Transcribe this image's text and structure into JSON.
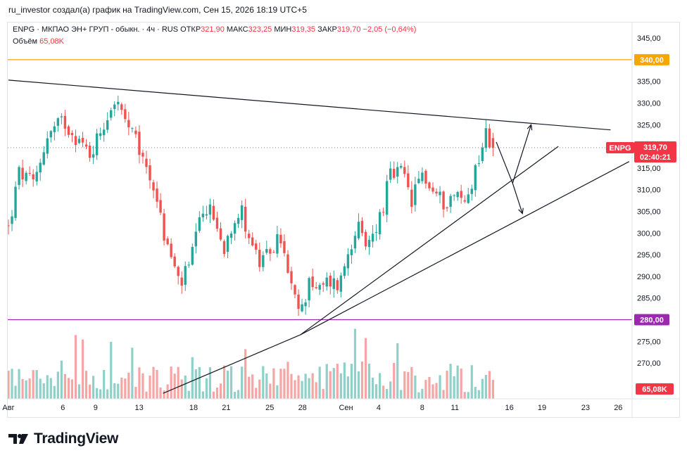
{
  "header": {
    "attribution": "ru_investor создал(а) график на TradingView.com, Сен 15, 2026 18:19 UTC+5"
  },
  "legend": {
    "ticker_line": "ENPG · МКПАО ЭН+ ГРУП - обыкн. · 4ч · RUS",
    "open_label": "ОТКР",
    "open_value": "321,90",
    "high_label": "МАКС",
    "high_value": "323,25",
    "low_label": "МИН",
    "low_value": "319,35",
    "close_label": "ЗАКР",
    "close_value": "319,70",
    "change": "−2,05 (−0,64%)",
    "volume_label": "Объём",
    "volume_value": "65,08K"
  },
  "badges": {
    "ticker": "ENPG",
    "price": "319,70",
    "countdown": "02:40:21",
    "level_340": "340,00",
    "level_280": "280,00",
    "volume": "65,08K"
  },
  "footer": {
    "brand": "TradingView"
  },
  "colors": {
    "up": "#26a69a",
    "down": "#ef5350",
    "up_volume": "#8fd0c8",
    "down_volume": "#f5a6a4",
    "level_340": "#f7a600",
    "level_280": "#9c27b0",
    "trendline": "#131722",
    "price_badge": "#f23645"
  },
  "chart_data": {
    "type": "candlestick",
    "symbol": "ENPG",
    "timeframe": "4ч",
    "y_ticks": [
      "345,00",
      "335,00",
      "330,00",
      "325,00",
      "315,00",
      "310,00",
      "305,00",
      "300,00",
      "295,00",
      "290,00",
      "285,00",
      "275,00",
      "270,00"
    ],
    "ylim": [
      263,
      348
    ],
    "x_ticks": [
      {
        "label": "Авг",
        "day": 0
      },
      {
        "label": "6",
        "day": 5
      },
      {
        "label": "9",
        "day": 8
      },
      {
        "label": "13",
        "day": 12
      },
      {
        "label": "18",
        "day": 17
      },
      {
        "label": "21",
        "day": 20
      },
      {
        "label": "25",
        "day": 24
      },
      {
        "label": "28",
        "day": 27
      },
      {
        "label": "Сен",
        "day": 31
      },
      {
        "label": "4",
        "day": 34
      },
      {
        "label": "8",
        "day": 38
      },
      {
        "label": "11",
        "day": 41
      },
      {
        "label": "16",
        "day": 46
      },
      {
        "label": "19",
        "day": 49
      },
      {
        "label": "23",
        "day": 53
      },
      {
        "label": "26",
        "day": 56
      }
    ],
    "xlim": [
      0,
      57
    ],
    "anchor_points": [
      {
        "day": 0.0,
        "price": 301
      },
      {
        "day": 1.0,
        "price": 314
      },
      {
        "day": 2.3,
        "price": 311
      },
      {
        "day": 3.5,
        "price": 322
      },
      {
        "day": 5.0,
        "price": 326
      },
      {
        "day": 6.3,
        "price": 322
      },
      {
        "day": 7.5,
        "price": 318
      },
      {
        "day": 8.5,
        "price": 324
      },
      {
        "day": 9.8,
        "price": 331
      },
      {
        "day": 10.6,
        "price": 326
      },
      {
        "day": 11.5,
        "price": 322
      },
      {
        "day": 12.5,
        "price": 316
      },
      {
        "day": 13.5,
        "price": 310
      },
      {
        "day": 14.2,
        "price": 300
      },
      {
        "day": 15.0,
        "price": 294
      },
      {
        "day": 15.7,
        "price": 288
      },
      {
        "day": 16.6,
        "price": 292
      },
      {
        "day": 17.3,
        "price": 300
      },
      {
        "day": 18.2,
        "price": 306
      },
      {
        "day": 19.0,
        "price": 303
      },
      {
        "day": 19.7,
        "price": 296
      },
      {
        "day": 20.6,
        "price": 303
      },
      {
        "day": 21.4,
        "price": 305
      },
      {
        "day": 22.3,
        "price": 298
      },
      {
        "day": 23.2,
        "price": 292
      },
      {
        "day": 24.0,
        "price": 296
      },
      {
        "day": 25.0,
        "price": 299
      },
      {
        "day": 25.6,
        "price": 291
      },
      {
        "day": 26.3,
        "price": 284
      },
      {
        "day": 27.0,
        "price": 282
      },
      {
        "day": 27.6,
        "price": 290
      },
      {
        "day": 28.4,
        "price": 286
      },
      {
        "day": 29.4,
        "price": 289
      },
      {
        "day": 30.4,
        "price": 288
      },
      {
        "day": 31.2,
        "price": 296
      },
      {
        "day": 32.0,
        "price": 302
      },
      {
        "day": 32.8,
        "price": 296
      },
      {
        "day": 33.5,
        "price": 300
      },
      {
        "day": 34.3,
        "price": 305
      },
      {
        "day": 35.0,
        "price": 313
      },
      {
        "day": 36.2,
        "price": 314
      },
      {
        "day": 37.0,
        "price": 307
      },
      {
        "day": 38.0,
        "price": 314
      },
      {
        "day": 38.8,
        "price": 310
      },
      {
        "day": 40.0,
        "price": 307
      },
      {
        "day": 41.0,
        "price": 309
      },
      {
        "day": 42.0,
        "price": 307
      },
      {
        "day": 43.0,
        "price": 316
      },
      {
        "day": 43.8,
        "price": 323
      },
      {
        "day": 44.5,
        "price": 319.7
      }
    ],
    "candle_count": 138,
    "volume_scale_max": 110,
    "horizontal_levels": [
      {
        "price": 340.0,
        "color": "#f7a600"
      },
      {
        "price": 280.0,
        "color": "#9c27b0"
      }
    ],
    "last_price": 319.7,
    "trendlines": [
      {
        "from": {
          "day": 0,
          "price": 335.3
        },
        "to": {
          "day": 55.3,
          "price": 323.8
        }
      },
      {
        "from": {
          "day": 26.8,
          "price": 276.5
        },
        "to": {
          "day": 50.5,
          "price": 320
        }
      },
      {
        "from": {
          "day": 26.8,
          "price": 276.5
        },
        "to": {
          "day": 57,
          "price": 316.5
        }
      },
      {
        "from": {
          "day": 14.2,
          "price": 263
        },
        "to": {
          "day": 26.8,
          "price": 276.5
        }
      }
    ],
    "projection_arrows": [
      {
        "from": {
          "day": 44.8,
          "price": 321
        },
        "to": {
          "day": 46.3,
          "price": 311.5
        }
      },
      {
        "from": {
          "day": 46.3,
          "price": 311.5
        },
        "to": {
          "day": 48.0,
          "price": 325
        }
      },
      {
        "from": {
          "day": 46.3,
          "price": 311.5
        },
        "to": {
          "day": 47.2,
          "price": 304.5
        }
      }
    ]
  }
}
